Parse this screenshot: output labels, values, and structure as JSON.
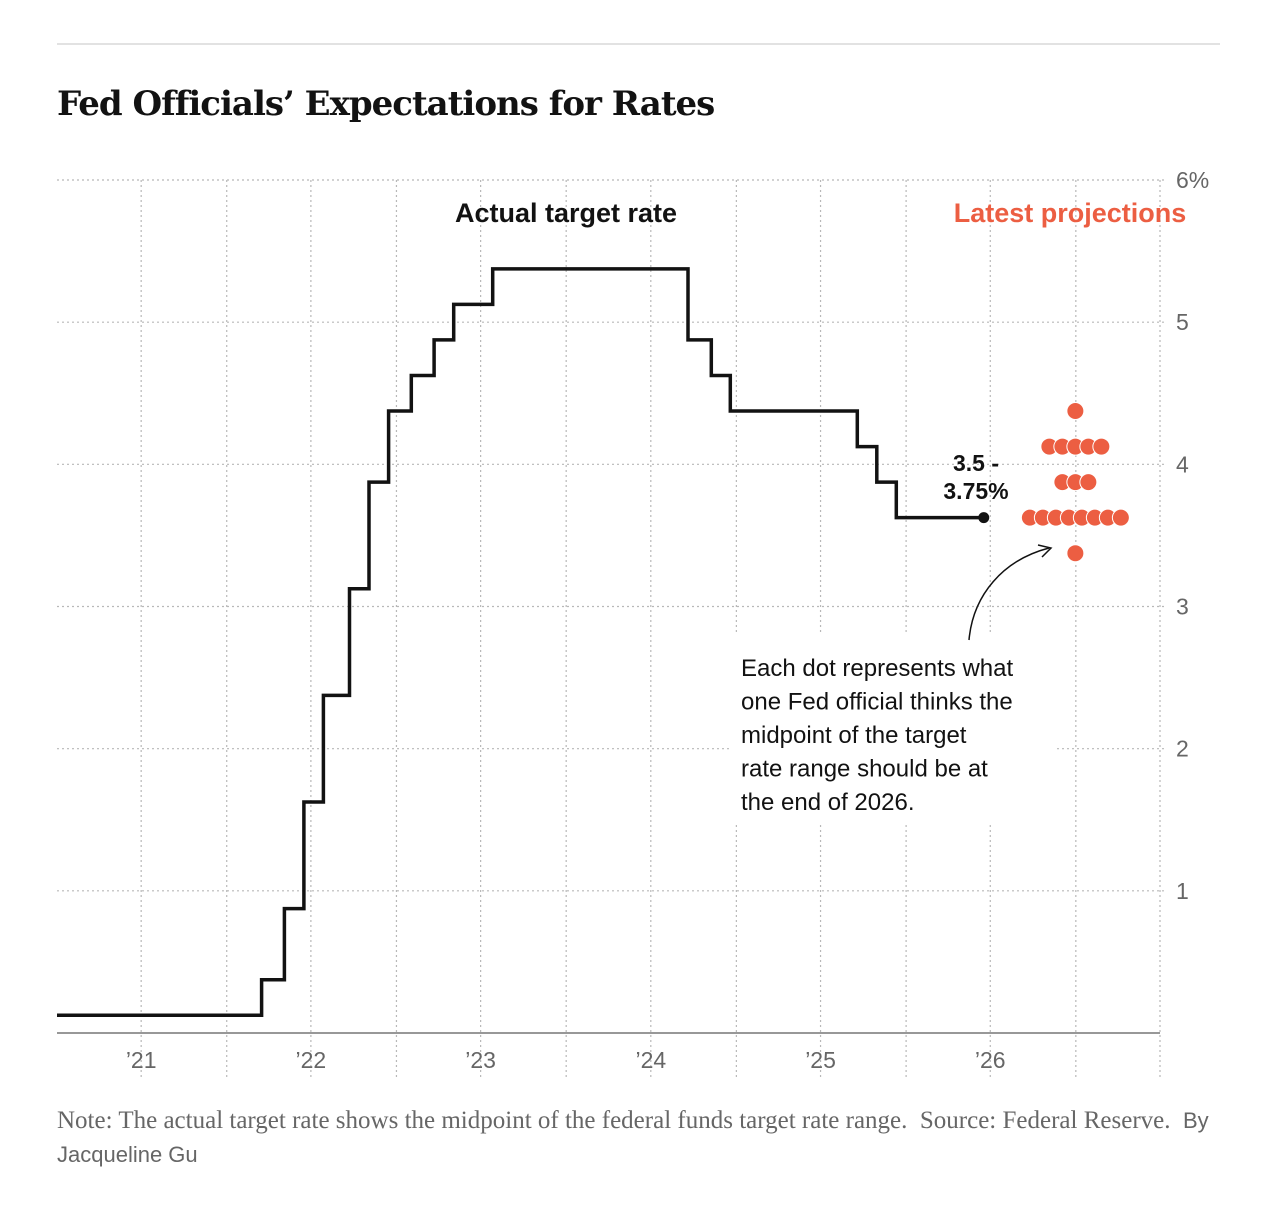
{
  "title": "Fed Officials’ Expectations for Rates",
  "note": "Note: The actual target rate shows the midpoint of the federal funds target rate range.",
  "source": "Source: Federal Reserve.",
  "byline": "By Jacqueline Gu",
  "colors": {
    "actual": "#121212",
    "projection": "#ec5e42",
    "grid": "#b8b8b8",
    "axis_text": "#666666"
  },
  "chart_data": {
    "type": "line",
    "step": true,
    "series_labels": {
      "actual": "Actual target rate",
      "projections": "Latest projections"
    },
    "ylim": [
      0,
      6
    ],
    "yticks": [
      {
        "value": 1,
        "label": "1"
      },
      {
        "value": 2,
        "label": "2"
      },
      {
        "value": 3,
        "label": "3"
      },
      {
        "value": 4,
        "label": "4"
      },
      {
        "value": 5,
        "label": "5"
      },
      {
        "value": 6,
        "label": "6%"
      }
    ],
    "xlim": [
      "2021-01-01",
      "2027-07-01"
    ],
    "xticks": [
      {
        "date": "2021-07-01",
        "label": "’21"
      },
      {
        "date": "2022-07-01",
        "label": "’22"
      },
      {
        "date": "2023-07-01",
        "label": "’23"
      },
      {
        "date": "2024-07-01",
        "label": "’24"
      },
      {
        "date": "2025-07-01",
        "label": "’25"
      },
      {
        "date": "2026-07-01",
        "label": "’26"
      }
    ],
    "actual": [
      {
        "date": "2021-01-01",
        "value": 0.125
      },
      {
        "date": "2022-03-17",
        "value": 0.375
      },
      {
        "date": "2022-05-05",
        "value": 0.875
      },
      {
        "date": "2022-06-16",
        "value": 1.625
      },
      {
        "date": "2022-07-28",
        "value": 2.375
      },
      {
        "date": "2022-09-22",
        "value": 3.125
      },
      {
        "date": "2022-11-03",
        "value": 3.875
      },
      {
        "date": "2022-12-15",
        "value": 4.375
      },
      {
        "date": "2023-02-02",
        "value": 4.625
      },
      {
        "date": "2023-03-23",
        "value": 4.875
      },
      {
        "date": "2023-05-04",
        "value": 5.125
      },
      {
        "date": "2023-07-27",
        "value": 5.375
      },
      {
        "date": "2024-09-19",
        "value": 4.875
      },
      {
        "date": "2024-11-08",
        "value": 4.625
      },
      {
        "date": "2024-12-19",
        "value": 4.375
      },
      {
        "date": "2025-09-18",
        "value": 4.125
      },
      {
        "date": "2025-10-30",
        "value": 3.875
      },
      {
        "date": "2025-12-11",
        "value": 3.625
      },
      {
        "date": "2026-06-17",
        "value": 3.625
      }
    ],
    "current_label": [
      "3.5 -",
      "3.75%"
    ],
    "projection_date": "2026-12-31",
    "projections": [
      {
        "value": 4.375,
        "count": 1
      },
      {
        "value": 4.125,
        "count": 5
      },
      {
        "value": 3.875,
        "count": 3
      },
      {
        "value": 3.625,
        "count": 8
      },
      {
        "value": 3.375,
        "count": 1
      }
    ],
    "annotation": [
      "Each dot represents what",
      "one Fed official thinks the",
      "midpoint of the target",
      "rate range should be at",
      "the end of 2026."
    ]
  }
}
